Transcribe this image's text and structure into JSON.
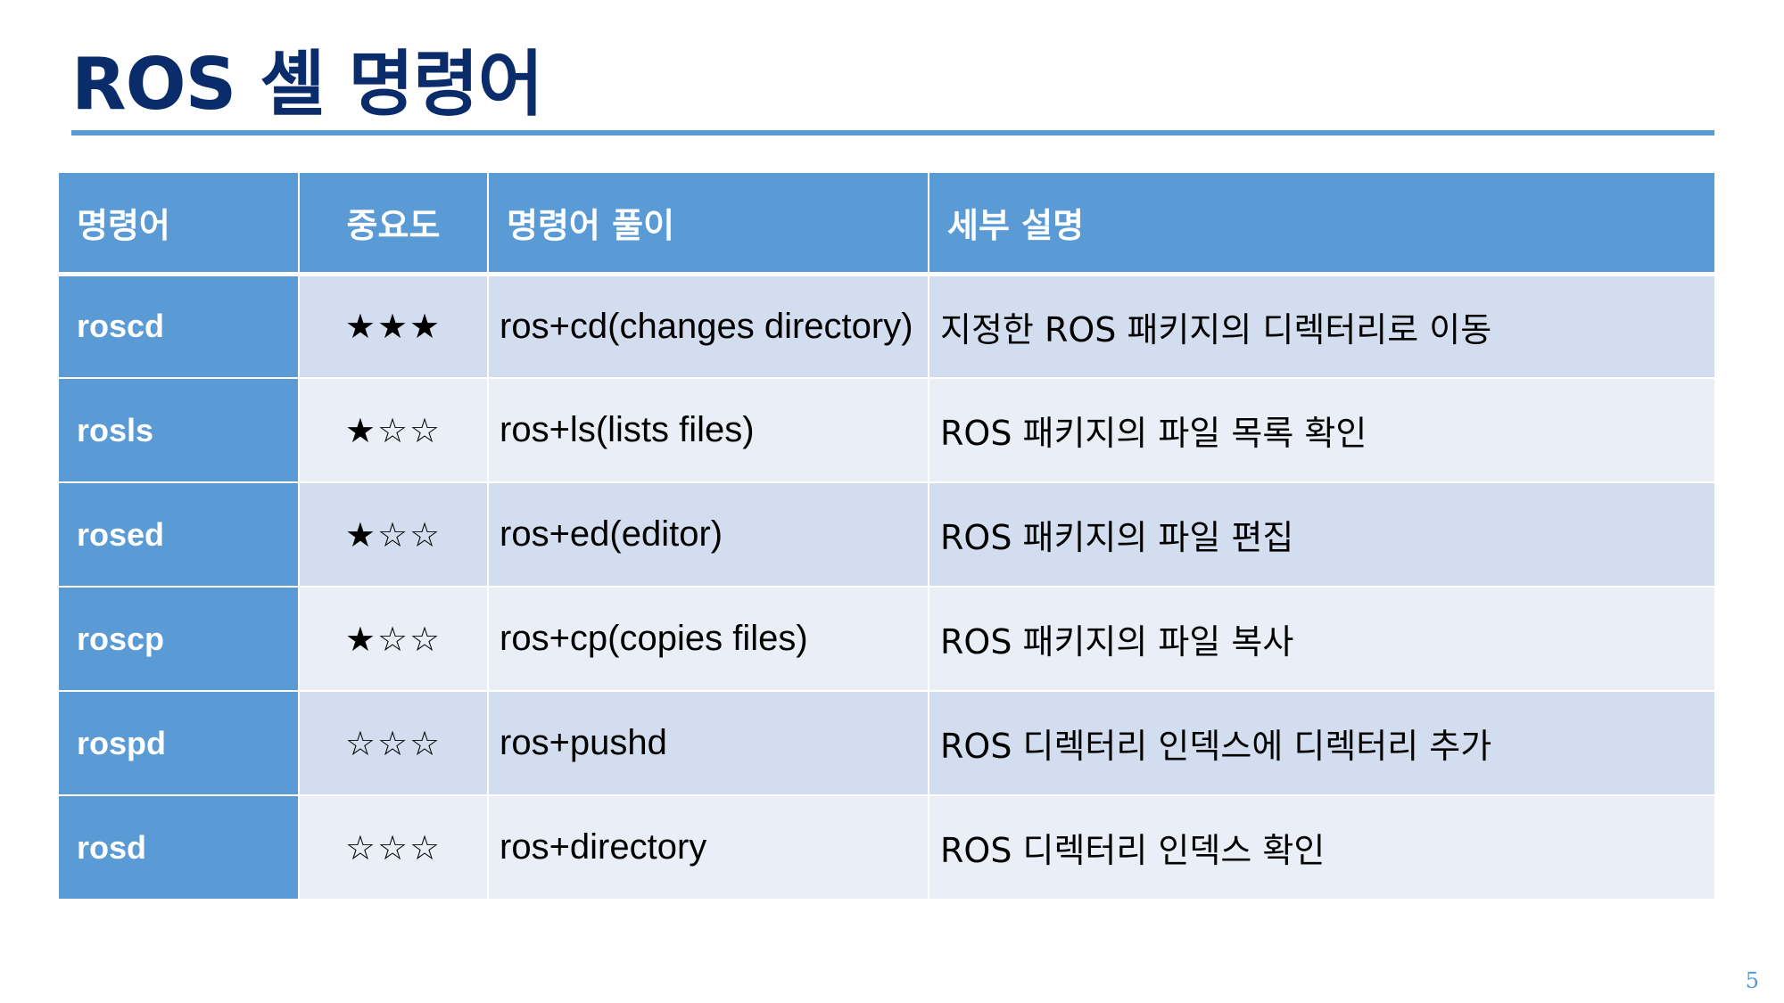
{
  "slide": {
    "title": "ROS 셸 명령어",
    "page_number": "5"
  },
  "table": {
    "headers": [
      "명령어",
      "중요도",
      "명령어 풀이",
      "세부 설명"
    ],
    "rows": [
      {
        "command": "roscd",
        "importance": "★★★",
        "expansion": "ros+cd(changes directory)",
        "description": "지정한 ROS 패키지의 디렉터리로 이동"
      },
      {
        "command": "rosls",
        "importance": "★☆☆",
        "expansion": "ros+ls(lists files)",
        "description": "ROS 패키지의 파일 목록 확인"
      },
      {
        "command": "rosed",
        "importance": "★☆☆",
        "expansion": "ros+ed(editor)",
        "description": "ROS 패키지의 파일 편집"
      },
      {
        "command": "roscp",
        "importance": "★☆☆",
        "expansion": "ros+cp(copies files)",
        "description": "ROS 패키지의 파일 복사"
      },
      {
        "command": "rospd",
        "importance": "☆☆☆",
        "expansion": "ros+pushd",
        "description": "ROS 디렉터리 인덱스에 디렉터리 추가"
      },
      {
        "command": "rosd",
        "importance": "☆☆☆",
        "expansion": "ros+directory",
        "description": "ROS 디렉터리 인덱스 확인"
      }
    ]
  },
  "colors": {
    "title": "#0b2c6b",
    "accent": "#5b9bd5",
    "row_odd": "#d2deef",
    "row_even": "#eaeff7"
  }
}
